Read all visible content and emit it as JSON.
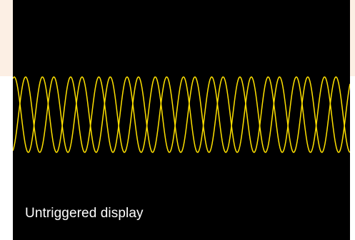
{
  "caption": "Untriggered display",
  "colors": {
    "backdrop": "#fcefe4",
    "screen": "#000000",
    "trace": "#ffe100",
    "caption_text": "#ffffff"
  }
}
